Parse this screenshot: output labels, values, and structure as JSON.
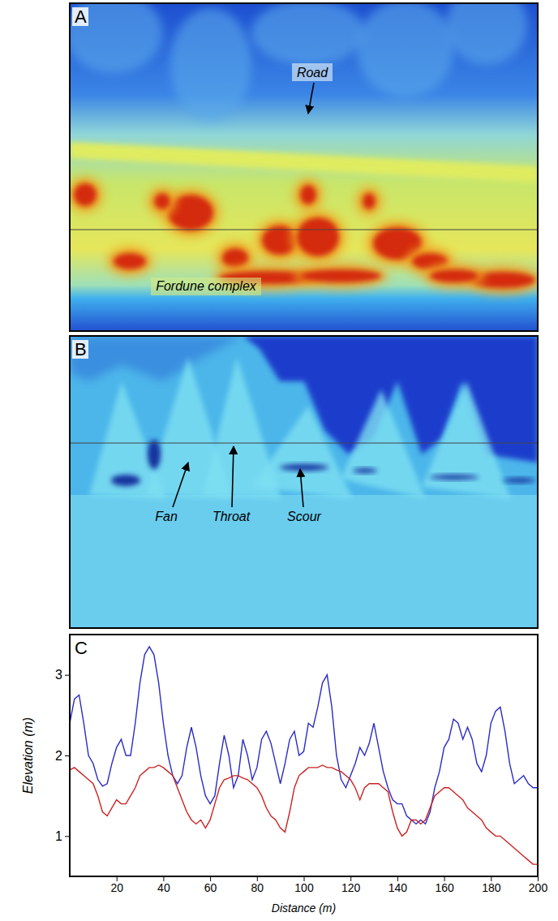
{
  "panels": [
    {
      "label": "A",
      "annotations": [
        "Road",
        "Fordune complex"
      ]
    },
    {
      "label": "B",
      "annotations": [
        "Fan",
        "Throat",
        "Scour"
      ]
    }
  ],
  "chart_data": {
    "type": "line",
    "panel": "C",
    "x_label": "Distance (m)",
    "y_label": "Elevation (m)",
    "xlim": [
      0,
      200
    ],
    "xticks": [
      20,
      40,
      60,
      80,
      100,
      120,
      140,
      160,
      180,
      200
    ],
    "ylim": [
      0.5,
      3.5
    ],
    "yticks": [
      1,
      2,
      3
    ],
    "grid": false,
    "x": [
      0,
      2,
      4,
      6,
      8,
      10,
      12,
      14,
      16,
      18,
      20,
      22,
      24,
      26,
      28,
      30,
      32,
      34,
      36,
      38,
      40,
      42,
      44,
      46,
      48,
      50,
      52,
      54,
      56,
      58,
      60,
      62,
      64,
      66,
      68,
      70,
      72,
      74,
      76,
      78,
      80,
      82,
      84,
      86,
      88,
      90,
      92,
      94,
      96,
      98,
      100,
      102,
      104,
      106,
      108,
      110,
      112,
      114,
      116,
      118,
      120,
      122,
      124,
      126,
      128,
      130,
      132,
      134,
      136,
      138,
      140,
      142,
      144,
      146,
      148,
      150,
      152,
      154,
      156,
      158,
      160,
      162,
      164,
      166,
      168,
      170,
      172,
      174,
      176,
      178,
      180,
      182,
      184,
      186,
      188,
      190,
      192,
      194,
      196,
      198,
      200
    ],
    "series": [
      {
        "color": "#2b2bc4",
        "values": [
          2.4,
          2.7,
          2.75,
          2.4,
          2.0,
          1.9,
          1.7,
          1.62,
          1.65,
          1.9,
          2.1,
          2.2,
          2.0,
          2.0,
          2.4,
          2.9,
          3.25,
          3.35,
          3.25,
          2.9,
          2.4,
          2.0,
          1.75,
          1.65,
          1.75,
          2.1,
          2.35,
          2.1,
          1.75,
          1.5,
          1.4,
          1.5,
          1.9,
          2.25,
          2.0,
          1.6,
          1.75,
          2.2,
          2.0,
          1.7,
          1.85,
          2.2,
          2.3,
          2.15,
          1.9,
          1.65,
          1.9,
          2.2,
          2.3,
          2.0,
          2.05,
          2.4,
          2.35,
          2.6,
          2.9,
          3.0,
          2.6,
          2.0,
          1.7,
          1.6,
          1.75,
          1.9,
          2.1,
          2.0,
          2.15,
          2.4,
          2.1,
          1.8,
          1.6,
          1.45,
          1.4,
          1.4,
          1.25,
          1.2,
          1.15,
          1.2,
          1.15,
          1.3,
          1.6,
          1.8,
          2.1,
          2.2,
          2.45,
          2.4,
          2.2,
          2.35,
          2.2,
          1.9,
          1.8,
          2.0,
          2.4,
          2.55,
          2.6,
          2.3,
          1.9,
          1.65,
          1.7,
          1.75,
          1.65,
          1.6,
          1.6
        ]
      },
      {
        "color": "#cc2222",
        "values": [
          1.82,
          1.85,
          1.8,
          1.75,
          1.7,
          1.65,
          1.5,
          1.3,
          1.25,
          1.35,
          1.45,
          1.4,
          1.4,
          1.5,
          1.6,
          1.75,
          1.8,
          1.85,
          1.85,
          1.88,
          1.85,
          1.8,
          1.75,
          1.6,
          1.45,
          1.3,
          1.2,
          1.15,
          1.2,
          1.1,
          1.2,
          1.4,
          1.6,
          1.7,
          1.72,
          1.75,
          1.75,
          1.72,
          1.7,
          1.65,
          1.6,
          1.5,
          1.35,
          1.25,
          1.2,
          1.1,
          1.05,
          1.3,
          1.6,
          1.75,
          1.8,
          1.85,
          1.85,
          1.85,
          1.88,
          1.85,
          1.85,
          1.82,
          1.8,
          1.75,
          1.7,
          1.6,
          1.45,
          1.6,
          1.65,
          1.65,
          1.65,
          1.6,
          1.55,
          1.3,
          1.1,
          1.0,
          1.05,
          1.2,
          1.2,
          1.15,
          1.2,
          1.35,
          1.5,
          1.55,
          1.6,
          1.6,
          1.55,
          1.5,
          1.45,
          1.35,
          1.3,
          1.25,
          1.2,
          1.1,
          1.05,
          1.0,
          1.0,
          0.95,
          0.9,
          0.85,
          0.8,
          0.75,
          0.7,
          0.65,
          0.65
        ]
      }
    ]
  }
}
